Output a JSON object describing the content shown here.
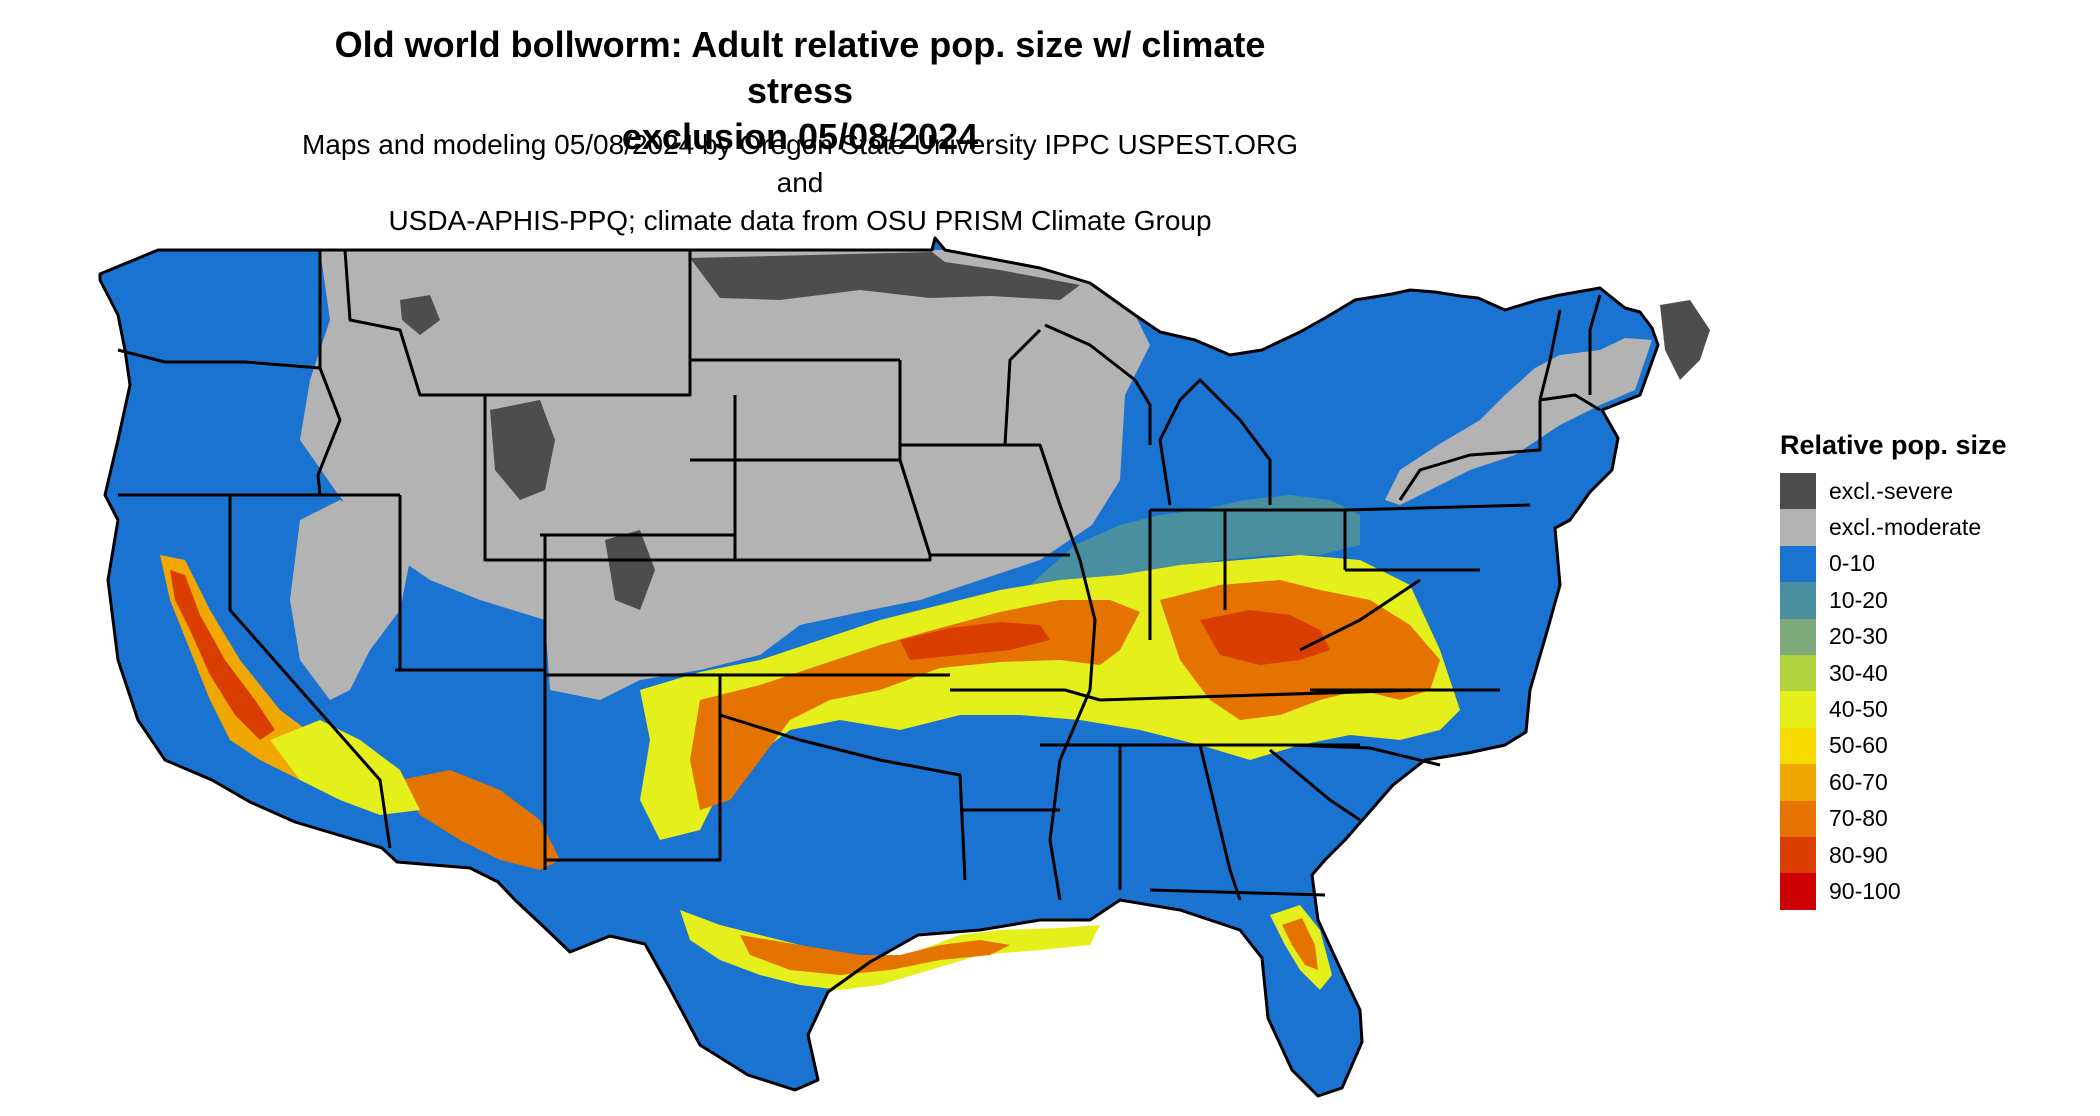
{
  "title": {
    "line1": "Old world bollworm: Adult relative pop. size w/ climate stress",
    "line2": "exclusion 05/08/2024"
  },
  "subtitle": {
    "line1": "Maps and modeling 05/08/2024 by Oregon State University IPPC USPEST.ORG and",
    "line2": "USDA-APHIS-PPQ; climate data from OSU PRISM Climate Group"
  },
  "legend": {
    "title": "Relative pop. size",
    "items": [
      {
        "label": "excl.-severe",
        "color": "#4d4d4d"
      },
      {
        "label": "excl.-moderate",
        "color": "#b3b3b3"
      },
      {
        "label": "0-10",
        "color": "#1b73d1"
      },
      {
        "label": "10-20",
        "color": "#4a8fa0"
      },
      {
        "label": "20-30",
        "color": "#7ea97a"
      },
      {
        "label": "30-40",
        "color": "#b2d23f"
      },
      {
        "label": "40-50",
        "color": "#e5ef1b"
      },
      {
        "label": "50-60",
        "color": "#f7dc00"
      },
      {
        "label": "60-70",
        "color": "#f0a800"
      },
      {
        "label": "70-80",
        "color": "#e57300"
      },
      {
        "label": "80-90",
        "color": "#d93d00"
      },
      {
        "label": "90-100",
        "color": "#cc0000"
      }
    ]
  }
}
